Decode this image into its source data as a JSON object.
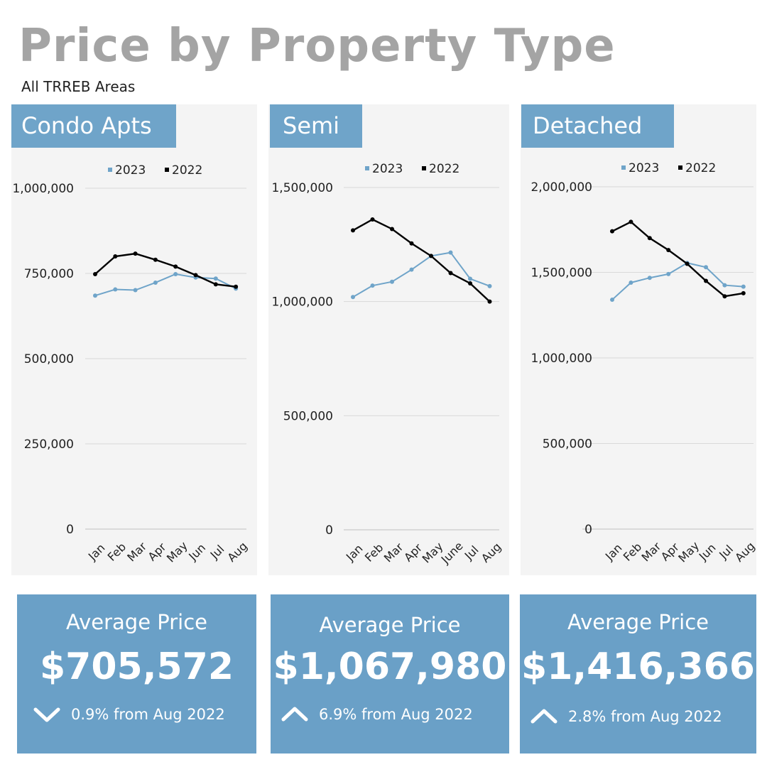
{
  "page": {
    "title": "Price by Property Type",
    "subtitle": "All TRREB Areas"
  },
  "colors": {
    "series_2023": "#6fa4c9",
    "series_2022": "#000000",
    "header": "#6fa4c9",
    "card": "#6aa0c7",
    "panel_bg": "#f4f4f4",
    "grid": "#d9d9d9"
  },
  "chart_data": [
    {
      "type": "line",
      "title": "Condo Apts",
      "categories": [
        "Jan",
        "Feb",
        "Mar",
        "Apr",
        "May",
        "Jun",
        "Jul",
        "Aug"
      ],
      "series": [
        {
          "name": "2023",
          "values": [
            685000,
            703000,
            701000,
            723000,
            748000,
            738000,
            735000,
            705572
          ]
        },
        {
          "name": "2022",
          "values": [
            748000,
            800000,
            808000,
            790000,
            770000,
            745000,
            718000,
            711000
          ]
        }
      ],
      "ylim": [
        0,
        1000000
      ],
      "yticks": [
        "0",
        "250,000",
        "500,000",
        "750,000",
        "1,000,000"
      ],
      "grid": true,
      "legend": "top"
    },
    {
      "type": "line",
      "title": "Semi",
      "categories": [
        "Jan",
        "Feb",
        "Mar",
        "Apr",
        "May",
        "June",
        "Jul",
        "Aug"
      ],
      "series": [
        {
          "name": "2023",
          "values": [
            1020000,
            1070000,
            1087000,
            1140000,
            1200000,
            1215000,
            1100000,
            1067980
          ]
        },
        {
          "name": "2022",
          "values": [
            1312000,
            1360000,
            1318000,
            1255000,
            1200000,
            1125000,
            1080000,
            1000000
          ]
        }
      ],
      "ylim": [
        0,
        1500000
      ],
      "yticks": [
        "0",
        "500,000",
        "1,000,000",
        "1,500,000"
      ],
      "grid": true,
      "legend": "top"
    },
    {
      "type": "line",
      "title": "Detached",
      "categories": [
        "Jan",
        "Feb",
        "Mar",
        "Apr",
        "May",
        "Jun",
        "Jul",
        "Aug"
      ],
      "series": [
        {
          "name": "2023",
          "values": [
            1340000,
            1440000,
            1468000,
            1490000,
            1555000,
            1530000,
            1425000,
            1416366
          ]
        },
        {
          "name": "2022",
          "values": [
            1740000,
            1795000,
            1700000,
            1630000,
            1550000,
            1450000,
            1360000,
            1378000
          ]
        }
      ],
      "ylim": [
        0,
        2000000
      ],
      "yticks": [
        "0",
        "500,000",
        "1,000,000",
        "1,500,000",
        "2,000,000"
      ],
      "grid": true,
      "legend": "top"
    }
  ],
  "cards": [
    {
      "label": "Average Price",
      "value": "$705,572",
      "direction": "down",
      "change": "0.9% from Aug 2022",
      "icon": "chevron-down-icon"
    },
    {
      "label": "Average Price",
      "value": "$1,067,980",
      "direction": "up",
      "change": "6.9% from Aug 2022",
      "icon": "chevron-up-icon"
    },
    {
      "label": "Average Price",
      "value": "$1,416,366",
      "direction": "up",
      "change": "2.8% from Aug 2022",
      "icon": "chevron-up-icon"
    }
  ]
}
